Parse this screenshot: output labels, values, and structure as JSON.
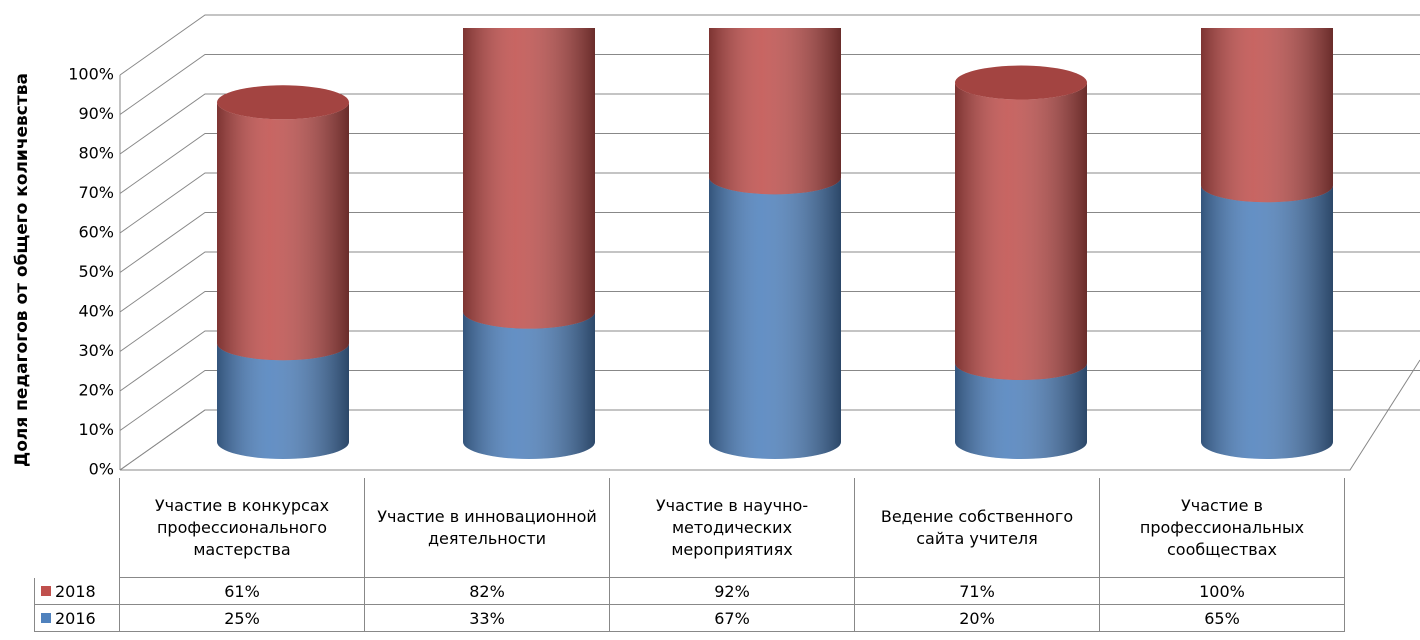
{
  "chart_data": {
    "type": "bar3d",
    "y_label": "Доля педагогов от общего количевства",
    "categories": [
      "Участие в конкурсах профессионального мастерства",
      "Участие в инновационной деятельности",
      "Участие в научно-методических мероприятиях",
      "Ведение собственного сайта учителя",
      "Участие в профессиональных сообществах"
    ],
    "series": [
      {
        "name": "2016",
        "color": "#4f81bd",
        "values": [
          25,
          33,
          67,
          20,
          65
        ],
        "value_labels": [
          "25%",
          "33%",
          "67%",
          "20%",
          "65%"
        ]
      },
      {
        "name": "2018",
        "color": "#c0504d",
        "values": [
          61,
          82,
          92,
          71,
          100
        ],
        "value_labels": [
          "61%",
          "82%",
          "92%",
          "71%",
          "100%"
        ]
      }
    ],
    "ylim": [
      0,
      100
    ],
    "yticks": [
      {
        "value": 0,
        "label": "0%"
      },
      {
        "value": 10,
        "label": "10%"
      },
      {
        "value": 20,
        "label": "20%"
      },
      {
        "value": 30,
        "label": "30%"
      },
      {
        "value": 40,
        "label": "40%"
      },
      {
        "value": 50,
        "label": "50%"
      },
      {
        "value": 60,
        "label": "60%"
      },
      {
        "value": 70,
        "label": "70%"
      },
      {
        "value": 80,
        "label": "80%"
      },
      {
        "value": 90,
        "label": "90%"
      },
      {
        "value": 100,
        "label": "100%"
      }
    ],
    "grid": true
  }
}
